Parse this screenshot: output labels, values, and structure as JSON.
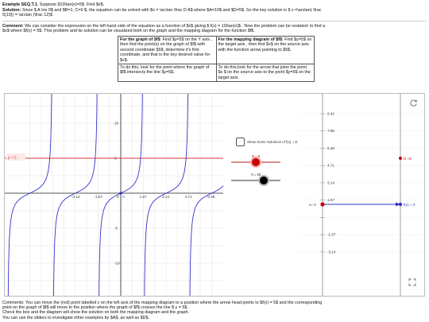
{
  "header": {
    "example_title": "Example  SEQ.T.1.",
    "example_text": "Suppose $10\\tan(x)=5$. Find $x$.",
    "solution_label": "Solution:",
    "solution_line1": "Since $ A \\ne 0$ and $B=1, C=0 $, the equation can be solved with $x = \\arctan \\frac D A$  where $A=10$ and $D=5$. So the key solution is $ x =\\arctan( \\frac",
    "solution_line2": "5{10}) = \\arctan (\\frac 12}$",
    "comment_label": "Comment:",
    "comment_line1": "We can consider the expression on the left hand side of the equation as a function of $x$ giving $  f(x) = 10\\tan(x)$ . Now the problem can be restated: to find a",
    "comment_line2": "$x$ where $f(x) = 5$. This problem and its solution can be visualized both on the graph and the mapping diagram for the function $f$."
  },
  "instructions": {
    "r1c1_title": "For the graph of $f$",
    "r1c1_text": ": Find $y=5$ on the Y axis , then find the point(s) on the graph of $f$ with second coordinate $5$, determine it's first coordinate,  and that is the key desired value for $x$.",
    "r1c2_title": "For the mapping diagram of $f$",
    "r1c2_text": ": Find $y=5$ on the target axis , then find $x$ on the source axis with the function arrow pointing to $5$.",
    "r2c1": "To do this, look for the point where the graph of $f$ intersects the line $y=5$.",
    "r2c2": "To do this,look for the arrow that joins the point $x $ on the source axis to the point $y=5$ on the target axis."
  },
  "graph": {
    "y_eq_label": "y = C",
    "x_ticks": [
      "-3.14",
      "-1.57",
      "0",
      "1.57",
      "3.14",
      "4.71",
      "6.28"
    ],
    "y_ticks": [
      "10",
      "5",
      "-5",
      "-10"
    ],
    "origin_label": "0",
    "point_label": "A",
    "colors": {
      "curve": "#3333cc",
      "line": "#cc0000",
      "grid": "#d8d8d8",
      "axis": "#222222"
    }
  },
  "controls": {
    "checkbox_label": "Show Some Solutions of f(x) = D",
    "checkbox_checked": false,
    "slider_d_label": "D = 5",
    "slider_d_value": 5,
    "slider_a_label": "A = 10",
    "slider_a_value": 10,
    "refresh_icon": "refresh-icon",
    "fullscreen_icon": "fullscreen-icon"
  },
  "mapping": {
    "source_ticks": [
      "9.42",
      "7.85",
      "6.28",
      "4.71",
      "3.14",
      "1.57",
      "0",
      "-1.57",
      "-3.14"
    ],
    "d_label": "D =5",
    "x_label": "x= 0",
    "f_label": "f(x) = 0"
  },
  "footer": {
    "comments_line1": "Comments: You can move the (red) point labelled x on the left axis of the mapping diagram to a position where the arrow head points to $f(x) = 5$ and the corresponding",
    "comments_line2": "point on the graph of $f$  will move to the position where the graph of $f$ crosses the line $ y = 5$.",
    "comments_line3": "Check the box and the diagram will show the solution on both the mapping diagram and the graph.",
    "sliders_note": "You can use the sliders to investigate other examples by $A$, as well as $D$."
  }
}
